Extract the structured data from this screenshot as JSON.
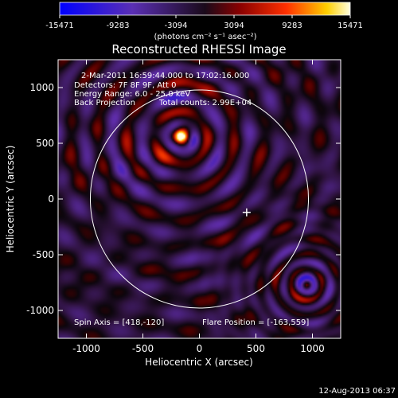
{
  "chart_data": {
    "type": "heatmap",
    "title": "Reconstructed RHESSI Image",
    "xlabel": "Heliocentric X (arcsec)",
    "ylabel": "Heliocentric Y (arcsec)",
    "xlim": [
      -1250,
      1250
    ],
    "ylim": [
      -1250,
      1250
    ],
    "x_ticks": [
      -1000,
      -500,
      0,
      500,
      1000
    ],
    "y_ticks": [
      -1000,
      -500,
      0,
      500,
      1000
    ],
    "colorbar": {
      "ticks": [
        -15471,
        -9283,
        -3094,
        3094,
        9283,
        15471
      ],
      "tick_labels": [
        "-15471",
        "-9283",
        "-3094",
        "3094",
        "9283",
        "15471"
      ],
      "range": [
        -15471,
        15471
      ],
      "units_label": "(photons cm⁻² s⁻¹ asec⁻²)"
    },
    "annotations": {
      "time_range": "2-Mar-2011 16:59:44.000 to 17:02:16.000",
      "detectors": "Detectors: 7F 8F 9F, Att 0",
      "energy_range": "Energy Range: 6.0 - 25.0 keV",
      "method": "Back Projection",
      "total_counts": "Total counts: 2.99E+04",
      "spin_axis": "Spin Axis = [418,-120]",
      "flare_position": "Flare Position = [-163,559]"
    },
    "solar_limb_radius_arcsec": 965,
    "spin_axis_marker": [
      418,
      -120
    ],
    "sources": [
      {
        "name": "flare",
        "x": -163,
        "y": 559,
        "peak": 15471
      },
      {
        "name": "secondary",
        "x": 950,
        "y": -770,
        "peak": -3000
      }
    ]
  },
  "footer": {
    "date": "12-Aug-2013 06:37"
  },
  "colors": {
    "background": "#000000",
    "axes": "#ffffff",
    "limb": "#ffffff"
  }
}
